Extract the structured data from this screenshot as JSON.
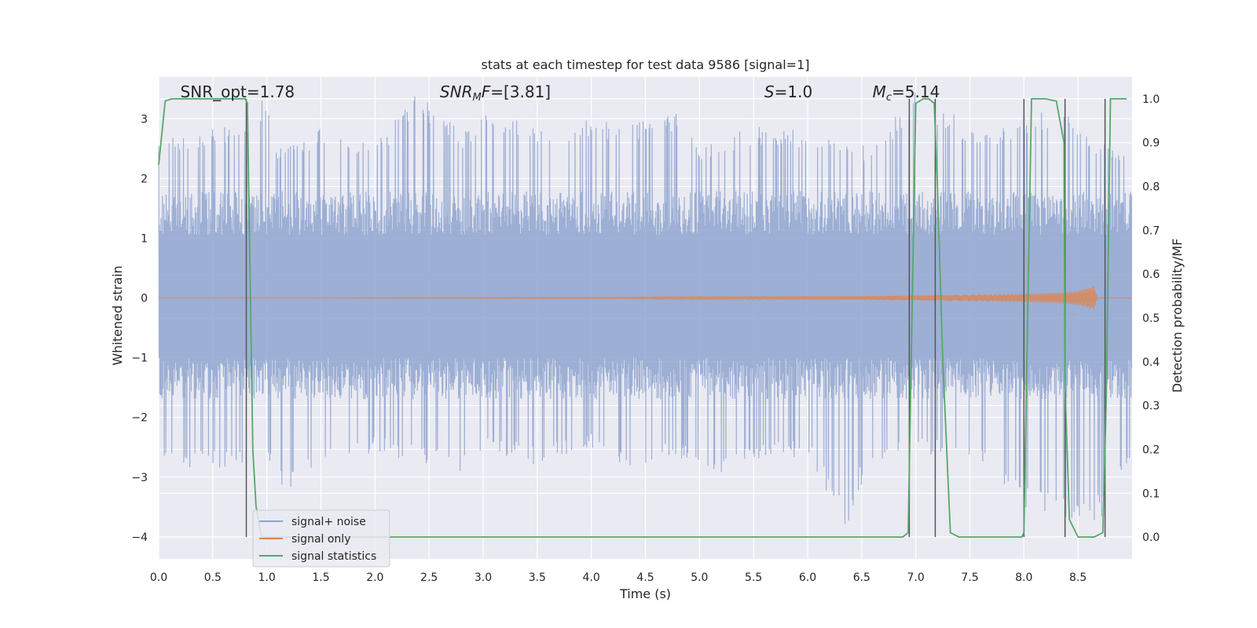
{
  "chart_data": {
    "type": "line",
    "title": "stats at each timestep for test data 9586 [signal=1]",
    "xlabel": "Time (s)",
    "ylabel": "Whitened strain",
    "y2label": "Detection probability/MF",
    "xlim": [
      0.0,
      9.0
    ],
    "ylim": [
      -4.37,
      3.7
    ],
    "y2lim": [
      -0.05,
      1.05
    ],
    "grid": true,
    "legend_position": "lower-left",
    "x_ticks": [
      {
        "v": 0.0,
        "label": "0.0"
      },
      {
        "v": 0.5,
        "label": "0.5"
      },
      {
        "v": 1.0,
        "label": "1.0"
      },
      {
        "v": 1.5,
        "label": "1.5"
      },
      {
        "v": 2.0,
        "label": "2.0"
      },
      {
        "v": 2.5,
        "label": "2.5"
      },
      {
        "v": 3.0,
        "label": "3.0"
      },
      {
        "v": 3.5,
        "label": "3.5"
      },
      {
        "v": 4.0,
        "label": "4.0"
      },
      {
        "v": 4.5,
        "label": "4.5"
      },
      {
        "v": 5.0,
        "label": "5.0"
      },
      {
        "v": 5.5,
        "label": "5.5"
      },
      {
        "v": 6.0,
        "label": "6.0"
      },
      {
        "v": 6.5,
        "label": "6.5"
      },
      {
        "v": 7.0,
        "label": "7.0"
      },
      {
        "v": 7.5,
        "label": "7.5"
      },
      {
        "v": 8.0,
        "label": "8.0"
      },
      {
        "v": 8.5,
        "label": "8.5"
      }
    ],
    "y_ticks": [
      {
        "v": 3,
        "label": "3"
      },
      {
        "v": 2,
        "label": "2"
      },
      {
        "v": 1,
        "label": "1"
      },
      {
        "v": 0,
        "label": "0"
      },
      {
        "v": -1,
        "label": "−1"
      },
      {
        "v": -2,
        "label": "−2"
      },
      {
        "v": -3,
        "label": "−3"
      },
      {
        "v": -4,
        "label": "−4"
      }
    ],
    "y2_ticks": [
      {
        "v": 1.0,
        "label": "1.0"
      },
      {
        "v": 0.9,
        "label": "0.9"
      },
      {
        "v": 0.8,
        "label": "0.8"
      },
      {
        "v": 0.7,
        "label": "0.7"
      },
      {
        "v": 0.6,
        "label": "0.6"
      },
      {
        "v": 0.5,
        "label": "0.5"
      },
      {
        "v": 0.4,
        "label": "0.4"
      },
      {
        "v": 0.3,
        "label": "0.3"
      },
      {
        "v": 0.2,
        "label": "0.2"
      },
      {
        "v": 0.1,
        "label": "0.1"
      },
      {
        "v": 0.0,
        "label": "0.0"
      }
    ],
    "annotations": [
      {
        "text": "SNR_opt=1.78",
        "x": 0.2
      },
      {
        "text": "SNRMF=[3.81]",
        "x": 2.6
      },
      {
        "text": "S=1.0",
        "x": 5.6
      },
      {
        "text": "Mc=5.14",
        "x": 6.6
      }
    ],
    "series": [
      {
        "name": "signal+ noise",
        "color": "#8fa5cf",
        "axis": "left",
        "envelope": {
          "x": [
            0.0,
            0.3,
            0.8,
            1.0,
            1.1,
            1.6,
            2.0,
            2.4,
            2.8,
            3.0,
            3.5,
            4.0,
            4.5,
            4.8,
            5.0,
            5.5,
            6.0,
            6.4,
            6.45,
            6.6,
            7.0,
            7.5,
            8.0,
            8.2,
            8.5,
            8.8,
            9.0
          ],
          "y_max": [
            2.7,
            2.8,
            2.9,
            3.5,
            2.6,
            2.9,
            2.6,
            3.5,
            2.8,
            3.1,
            2.9,
            3.0,
            3.0,
            3.1,
            2.5,
            2.9,
            2.8,
            2.7,
            2.6,
            2.5,
            3.5,
            2.9,
            2.9,
            3.2,
            3.0,
            2.5,
            2.3
          ],
          "y_min": [
            -2.7,
            -2.9,
            -2.8,
            -2.6,
            -3.3,
            -2.8,
            -2.6,
            -2.8,
            -2.9,
            -2.6,
            -2.8,
            -2.5,
            -3.0,
            -2.6,
            -3.1,
            -2.7,
            -2.7,
            -4.0,
            -3.3,
            -2.8,
            -2.6,
            -2.7,
            -3.5,
            -3.6,
            -3.9,
            -3.6,
            -2.6
          ]
        }
      },
      {
        "name": "signal only",
        "color": "#dd8452",
        "axis": "left",
        "amplitude": {
          "x": [
            0.0,
            4.0,
            5.5,
            6.5,
            7.0,
            7.5,
            8.0,
            8.3,
            8.5,
            8.65,
            8.68
          ],
          "y": [
            0.005,
            0.01,
            0.02,
            0.03,
            0.04,
            0.055,
            0.07,
            0.09,
            0.12,
            0.2,
            0.0
          ]
        }
      },
      {
        "name": "signal statistics",
        "color": "#55a868",
        "axis": "right",
        "x": [
          0.0,
          0.06,
          0.12,
          0.3,
          0.5,
          0.7,
          0.8,
          0.82,
          0.87,
          0.9,
          0.95,
          2.0,
          4.0,
          6.0,
          6.88,
          6.93,
          6.95,
          7.0,
          7.07,
          7.12,
          7.17,
          7.2,
          7.25,
          7.32,
          7.4,
          7.6,
          7.8,
          7.98,
          8.0,
          8.02,
          8.07,
          8.12,
          8.2,
          8.3,
          8.37,
          8.38,
          8.42,
          8.5,
          8.65,
          8.73,
          8.76,
          8.8,
          8.85,
          8.95
        ],
        "y": [
          0.85,
          0.995,
          1.0,
          1.0,
          1.0,
          1.0,
          1.0,
          0.99,
          0.2,
          0.07,
          0.0,
          0.0,
          0.0,
          0.0,
          0.0,
          0.01,
          0.3,
          0.99,
          1.0,
          1.0,
          0.99,
          0.8,
          0.4,
          0.01,
          0.0,
          0.0,
          0.0,
          0.0,
          0.01,
          0.3,
          1.0,
          1.0,
          1.0,
          0.995,
          0.9,
          0.35,
          0.04,
          0.0,
          0.0,
          0.01,
          0.3,
          1.0,
          1.0,
          1.0
        ]
      }
    ],
    "vertical_markers": {
      "color": "#555555",
      "x": [
        0.81,
        6.94,
        7.18,
        8.0,
        8.38,
        8.75
      ]
    }
  }
}
